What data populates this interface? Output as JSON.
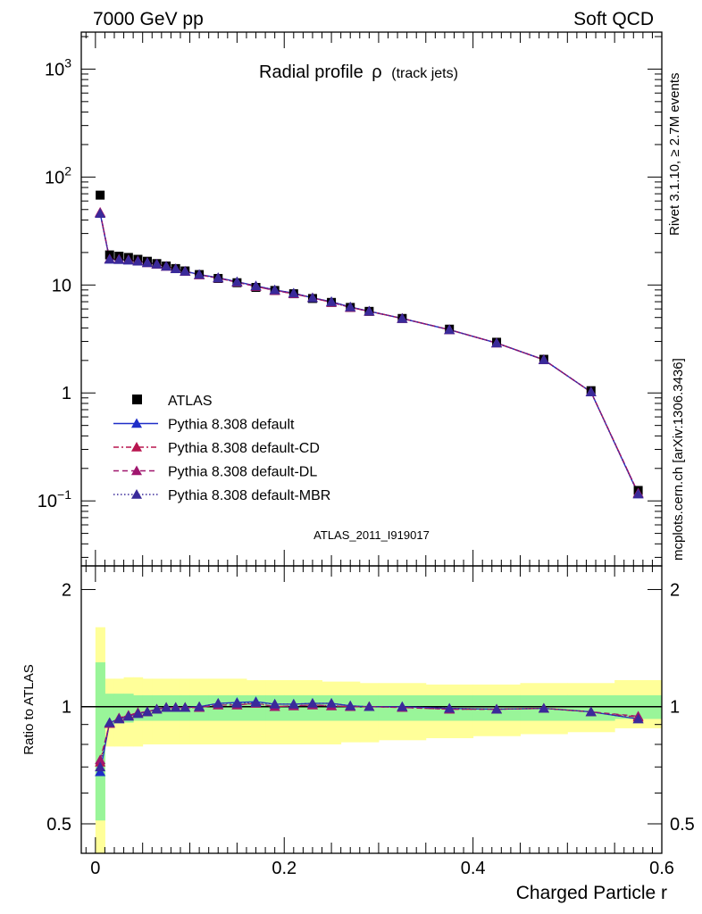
{
  "header": {
    "left": "7000 GeV pp",
    "right": "Soft QCD"
  },
  "side_labels": {
    "rivet": "Rivet 3.1.10, ≥ 2.7M events",
    "mcplots": "mcplots.cern.ch [arXiv:1306.3436]"
  },
  "chart_data": [
    {
      "type": "line",
      "title": "Radial profile",
      "title_symbol": "ρ",
      "title_suffix": "(track jets)",
      "watermark": "ATLAS_2011_I919017",
      "yscale": "log",
      "xlim": [
        -0.015,
        0.6
      ],
      "ylim": [
        0.025,
        2200
      ],
      "yticks": [
        {
          "v": 0.1,
          "label": "10",
          "sup": "−1"
        },
        {
          "v": 1,
          "label": "1",
          "sup": ""
        },
        {
          "v": 10,
          "label": "10",
          "sup": ""
        },
        {
          "v": 100,
          "label": "10",
          "sup": "2"
        },
        {
          "v": 1000,
          "label": "10",
          "sup": "3"
        }
      ],
      "legend_position": "lower-left",
      "x": [
        0.005,
        0.015,
        0.025,
        0.035,
        0.045,
        0.055,
        0.065,
        0.075,
        0.085,
        0.095,
        0.11,
        0.13,
        0.15,
        0.17,
        0.19,
        0.21,
        0.23,
        0.25,
        0.27,
        0.29,
        0.325,
        0.375,
        0.425,
        0.475,
        0.525,
        0.575
      ],
      "series": [
        {
          "name": "ATLAS",
          "color": "#000000",
          "marker": "square",
          "dash": "",
          "values": [
            68,
            19.0,
            18.5,
            18.0,
            17.3,
            16.6,
            15.8,
            15.0,
            14.2,
            13.5,
            12.5,
            11.5,
            10.5,
            9.5,
            8.9,
            8.3,
            7.5,
            6.9,
            6.2,
            5.7,
            4.9,
            3.9,
            2.95,
            2.05,
            1.05,
            0.125
          ]
        },
        {
          "name": "Pythia 8.308 default",
          "color": "#1f2ec8",
          "marker": "triangle",
          "dash": "",
          "values": [
            46,
            17.3,
            17.2,
            17.0,
            16.6,
            16.1,
            15.6,
            14.9,
            14.1,
            13.4,
            12.5,
            11.7,
            10.7,
            9.8,
            9.0,
            8.4,
            7.6,
            7.0,
            6.25,
            5.72,
            4.9,
            3.85,
            2.9,
            2.03,
            1.02,
            0.116
          ]
        },
        {
          "name": "Pythia 8.308 default-CD",
          "color": "#b8154f",
          "marker": "triangle",
          "dash": "6 3 2 3",
          "values": [
            47,
            17.4,
            17.3,
            17.1,
            16.7,
            16.1,
            15.6,
            14.9,
            14.1,
            13.4,
            12.4,
            11.6,
            10.6,
            9.7,
            8.9,
            8.3,
            7.6,
            6.9,
            6.2,
            5.7,
            4.9,
            3.85,
            2.9,
            2.03,
            1.02,
            0.118
          ]
        },
        {
          "name": "Pythia 8.308 default-DL",
          "color": "#a0166e",
          "marker": "triangle",
          "dash": "6 4",
          "values": [
            47,
            17.4,
            17.3,
            17.1,
            16.7,
            16.1,
            15.6,
            14.9,
            14.1,
            13.4,
            12.4,
            11.6,
            10.6,
            9.7,
            8.9,
            8.3,
            7.6,
            6.9,
            6.2,
            5.7,
            4.9,
            3.85,
            2.9,
            2.03,
            1.02,
            0.118
          ]
        },
        {
          "name": "Pythia 8.308 default-MBR",
          "color": "#3a2a9a",
          "marker": "triangle",
          "dash": "1.5 2.5",
          "values": [
            46,
            17.3,
            17.2,
            17.0,
            16.6,
            16.1,
            15.6,
            14.9,
            14.1,
            13.4,
            12.5,
            11.6,
            10.7,
            9.8,
            9.0,
            8.4,
            7.6,
            7.0,
            6.25,
            5.72,
            4.9,
            3.85,
            2.9,
            2.03,
            1.02,
            0.116
          ]
        }
      ]
    },
    {
      "type": "line",
      "ylabel": "Ratio to ATLAS",
      "xlabel": "Charged Particle r",
      "yscale": "log",
      "xlim": [
        -0.015,
        0.6
      ],
      "ylim": [
        0.42,
        2.3
      ],
      "yticks": [
        {
          "v": 0.5,
          "label": "0.5"
        },
        {
          "v": 1,
          "label": "1"
        },
        {
          "v": 2,
          "label": "2"
        }
      ],
      "xticks": [
        {
          "v": 0,
          "label": "0"
        },
        {
          "v": 0.2,
          "label": "0.2"
        },
        {
          "v": 0.4,
          "label": "0.4"
        },
        {
          "v": 0.6,
          "label": "0.6"
        }
      ],
      "reference_line": 1,
      "x": [
        0.005,
        0.015,
        0.025,
        0.035,
        0.045,
        0.055,
        0.065,
        0.075,
        0.085,
        0.095,
        0.11,
        0.13,
        0.15,
        0.17,
        0.19,
        0.21,
        0.23,
        0.25,
        0.27,
        0.29,
        0.325,
        0.375,
        0.425,
        0.475,
        0.525,
        0.575
      ],
      "x_edges": [
        0.0,
        0.01,
        0.02,
        0.03,
        0.04,
        0.05,
        0.06,
        0.07,
        0.08,
        0.09,
        0.1,
        0.12,
        0.14,
        0.16,
        0.18,
        0.2,
        0.22,
        0.24,
        0.26,
        0.28,
        0.3,
        0.35,
        0.4,
        0.45,
        0.5,
        0.55,
        0.6
      ],
      "band_stat": {
        "color": "#99f599",
        "low": [
          0.51,
          0.9,
          0.91,
          0.91,
          0.92,
          0.92,
          0.92,
          0.92,
          0.92,
          0.92,
          0.92,
          0.92,
          0.92,
          0.92,
          0.92,
          0.92,
          0.92,
          0.92,
          0.92,
          0.92,
          0.92,
          0.92,
          0.92,
          0.92,
          0.92,
          0.93
        ],
        "high": [
          1.3,
          1.08,
          1.08,
          1.08,
          1.07,
          1.07,
          1.07,
          1.07,
          1.07,
          1.07,
          1.07,
          1.07,
          1.07,
          1.07,
          1.07,
          1.07,
          1.07,
          1.07,
          1.07,
          1.07,
          1.07,
          1.07,
          1.07,
          1.07,
          1.07,
          1.07
        ]
      },
      "band_total": {
        "color": "#ffff99",
        "low": [
          0.42,
          0.79,
          0.79,
          0.79,
          0.79,
          0.8,
          0.8,
          0.8,
          0.8,
          0.8,
          0.8,
          0.8,
          0.8,
          0.8,
          0.8,
          0.8,
          0.8,
          0.8,
          0.81,
          0.81,
          0.82,
          0.83,
          0.84,
          0.85,
          0.86,
          0.88
        ],
        "high": [
          1.6,
          1.18,
          1.18,
          1.19,
          1.19,
          1.18,
          1.18,
          1.18,
          1.18,
          1.18,
          1.18,
          1.18,
          1.18,
          1.17,
          1.17,
          1.17,
          1.17,
          1.16,
          1.16,
          1.15,
          1.15,
          1.14,
          1.14,
          1.15,
          1.15,
          1.17
        ]
      },
      "series": [
        {
          "name": "Pythia 8.308 default",
          "color": "#1f2ec8",
          "marker": "triangle",
          "dash": "",
          "values": [
            0.68,
            0.91,
            0.93,
            0.945,
            0.96,
            0.97,
            0.985,
            0.995,
            0.995,
            0.995,
            1.0,
            1.02,
            1.025,
            1.03,
            1.015,
            1.015,
            1.02,
            1.02,
            1.005,
            1.0,
            1.0,
            0.99,
            0.985,
            0.99,
            0.97,
            0.93
          ]
        },
        {
          "name": "Pythia 8.308 default-CD",
          "color": "#b8154f",
          "marker": "triangle",
          "dash": "6 3 2 3",
          "values": [
            0.72,
            0.905,
            0.935,
            0.95,
            0.965,
            0.97,
            0.985,
            0.995,
            0.995,
            0.995,
            0.995,
            1.01,
            1.01,
            1.02,
            1.0,
            1.005,
            1.01,
            1.005,
            1.0,
            1.0,
            0.995,
            0.985,
            0.985,
            0.99,
            0.97,
            0.94
          ]
        },
        {
          "name": "Pythia 8.308 default-DL",
          "color": "#a0166e",
          "marker": "triangle",
          "dash": "6 4",
          "values": [
            0.73,
            0.905,
            0.935,
            0.95,
            0.965,
            0.97,
            0.985,
            0.995,
            0.995,
            0.995,
            0.995,
            1.01,
            1.01,
            1.02,
            1.0,
            1.005,
            1.01,
            1.005,
            1.0,
            1.0,
            0.995,
            0.985,
            0.985,
            0.99,
            0.97,
            0.945
          ]
        },
        {
          "name": "Pythia 8.308 default-MBR",
          "color": "#3a2a9a",
          "marker": "triangle",
          "dash": "1.5 2.5",
          "values": [
            0.7,
            0.91,
            0.93,
            0.945,
            0.96,
            0.97,
            0.985,
            0.995,
            0.995,
            0.995,
            1.0,
            1.02,
            1.02,
            1.025,
            1.015,
            1.015,
            1.02,
            1.02,
            1.005,
            1.0,
            1.0,
            0.99,
            0.985,
            0.99,
            0.97,
            0.93
          ]
        }
      ]
    }
  ]
}
